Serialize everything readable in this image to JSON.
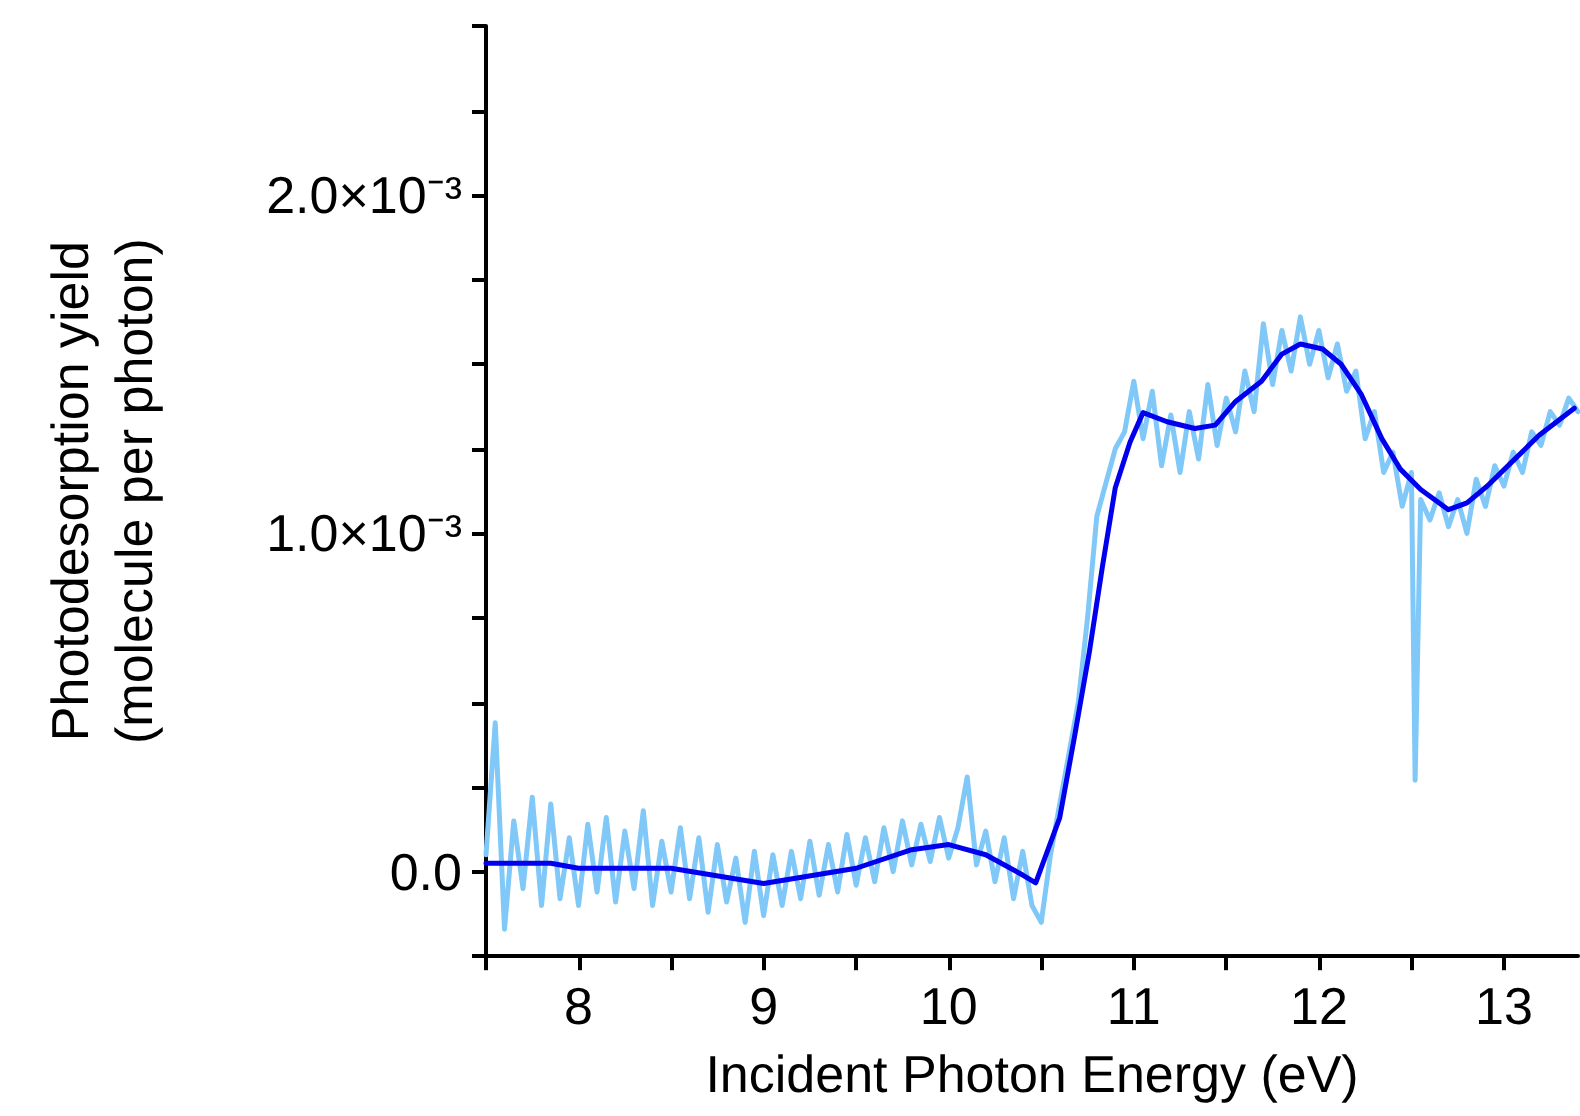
{
  "chart_data": {
    "type": "line",
    "xlabel": "Incident Photon Energy (eV)",
    "ylabel": "Photodesorption yield\n(molecule per photon)",
    "xlim": [
      7.5,
      13.4
    ],
    "xticks": [
      {
        "value": 7.5,
        "label": null
      },
      8,
      {
        "value": 8.5,
        "label": null
      },
      9,
      {
        "value": 9.5,
        "label": null
      },
      10,
      {
        "value": 10.5,
        "label": null
      },
      11,
      {
        "value": 11.5,
        "label": null
      },
      12,
      {
        "value": 12.5,
        "label": null
      },
      13
    ],
    "ylim": [
      -0.00025,
      0.0025
    ],
    "yticks": [
      {
        "value": -0.00025,
        "label": null
      },
      {
        "value": 0,
        "label": "0.0"
      },
      {
        "value": 0.00025,
        "label": null
      },
      {
        "value": 0.0005,
        "label": null
      },
      {
        "value": 0.00075,
        "label": null
      },
      {
        "value": 0.001,
        "label": "1.0×10⁻³"
      },
      {
        "value": 0.00125,
        "label": null
      },
      {
        "value": 0.0015,
        "label": null
      },
      {
        "value": 0.00175,
        "label": null
      },
      {
        "value": 0.002,
        "label": "2.0×10⁻³"
      },
      {
        "value": 0.00225,
        "label": null
      },
      {
        "value": 0.0025,
        "label": null
      }
    ],
    "grid": false,
    "marker": "none",
    "line_style": "solid",
    "series": [
      {
        "color": "#80c8f8",
        "x": [
          7.5,
          7.55,
          7.6,
          7.65,
          7.7,
          7.75,
          7.8,
          7.85,
          7.9,
          7.95,
          8.0,
          8.05,
          8.1,
          8.15,
          8.2,
          8.25,
          8.3,
          8.35,
          8.4,
          8.45,
          8.5,
          8.55,
          8.6,
          8.65,
          8.7,
          8.75,
          8.8,
          8.85,
          8.9,
          8.95,
          9.0,
          9.05,
          9.1,
          9.15,
          9.2,
          9.25,
          9.3,
          9.35,
          9.4,
          9.45,
          9.5,
          9.55,
          9.6,
          9.65,
          9.7,
          9.75,
          9.8,
          9.85,
          9.9,
          9.95,
          10.0,
          10.05,
          10.1,
          10.15,
          10.2,
          10.25,
          10.3,
          10.35,
          10.4,
          10.45,
          10.5,
          10.55,
          10.6,
          10.65,
          10.7,
          10.75,
          10.8,
          10.85,
          10.9,
          10.95,
          11.0,
          11.05,
          11.1,
          11.15,
          11.2,
          11.25,
          11.3,
          11.35,
          11.4,
          11.45,
          11.5,
          11.55,
          11.6,
          11.65,
          11.7,
          11.75,
          11.8,
          11.85,
          11.9,
          11.95,
          12.0,
          12.05,
          12.1,
          12.15,
          12.2,
          12.25,
          12.3,
          12.35,
          12.4,
          12.45,
          12.5,
          12.52,
          12.55,
          12.6,
          12.65,
          12.7,
          12.75,
          12.8,
          12.85,
          12.9,
          12.95,
          13.0,
          13.05,
          13.1,
          13.15,
          13.2,
          13.25,
          13.3,
          13.35,
          13.4
        ],
        "values": [
          5e-05,
          0.00044,
          -0.00017,
          0.00015,
          -5e-05,
          0.00022,
          -0.0001,
          0.0002,
          -8e-05,
          0.0001,
          -0.0001,
          0.00014,
          -6e-05,
          0.00016,
          -9e-05,
          0.00012,
          -5e-05,
          0.00018,
          -0.0001,
          9e-05,
          -6e-05,
          0.00013,
          -8e-05,
          0.0001,
          -0.00012,
          8e-05,
          -9e-05,
          4e-05,
          -0.00015,
          6e-05,
          -0.00013,
          5e-05,
          -0.0001,
          6e-05,
          -8e-05,
          9e-05,
          -7e-05,
          8e-05,
          -6e-05,
          0.00011,
          -4e-05,
          0.0001,
          -3e-05,
          0.00013,
          0,
          0.00015,
          2e-05,
          0.00014,
          3e-05,
          0.00016,
          4e-05,
          0.00013,
          0.00028,
          2e-05,
          0.00012,
          -3e-05,
          0.0001,
          -8e-05,
          6e-05,
          -0.0001,
          -0.00015,
          5e-05,
          0.0002,
          0.00035,
          0.0005,
          0.00075,
          0.00105,
          0.00115,
          0.00125,
          0.0013,
          0.00145,
          0.00128,
          0.00142,
          0.0012,
          0.00135,
          0.00118,
          0.00136,
          0.00122,
          0.00144,
          0.00126,
          0.0014,
          0.0013,
          0.00148,
          0.00136,
          0.00162,
          0.00144,
          0.0016,
          0.00148,
          0.00164,
          0.0015,
          0.0016,
          0.00146,
          0.00156,
          0.00142,
          0.00148,
          0.00128,
          0.00136,
          0.00118,
          0.00124,
          0.00108,
          0.00118,
          0.00027,
          0.0011,
          0.00104,
          0.00112,
          0.00102,
          0.0011,
          0.001,
          0.00116,
          0.00108,
          0.0012,
          0.00114,
          0.00124,
          0.00118,
          0.0013,
          0.00126,
          0.00136,
          0.00132,
          0.0014,
          0.00136
        ]
      },
      {
        "color": "#0000ee",
        "x": [
          7.5,
          7.85,
          8.0,
          8.5,
          9.0,
          9.5,
          9.8,
          10.0,
          10.2,
          10.4,
          10.47,
          10.6,
          10.68,
          10.76,
          10.83,
          10.9,
          10.98,
          11.05,
          11.18,
          11.33,
          11.44,
          11.55,
          11.69,
          11.8,
          11.9,
          12.02,
          12.12,
          12.23,
          12.34,
          12.44,
          12.55,
          12.7,
          12.8,
          12.91,
          13.05,
          13.19,
          13.38
        ],
        "values": [
          2.5e-05,
          2.5e-05,
          1e-05,
          1e-05,
          -3.5e-05,
          1e-05,
          6.5e-05,
          8e-05,
          5e-05,
          -1e-05,
          -3.3e-05,
          0.00016,
          0.0004,
          0.00065,
          0.0009,
          0.001135,
          0.00127,
          0.001357,
          0.00133,
          0.00131,
          0.00132,
          0.00139,
          0.00145,
          0.00153,
          0.00156,
          0.001545,
          0.0015,
          0.00141,
          0.00128,
          0.00119,
          0.00113,
          0.00107,
          0.00109,
          0.00114,
          0.001215,
          0.00129,
          0.00137
        ]
      }
    ]
  }
}
